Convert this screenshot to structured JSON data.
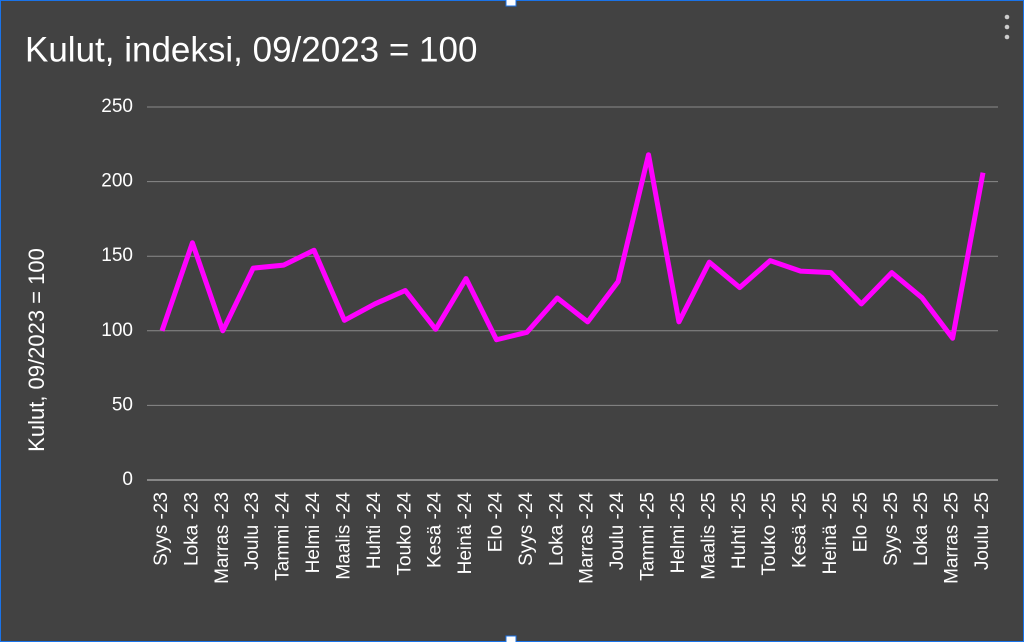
{
  "chart_data": {
    "type": "line",
    "title": "Kulut, indeksi, 09/2023 = 100",
    "y_label": "Kulut, 09/2023 = 100",
    "categories": [
      "Syys -23",
      "Loka -23",
      "Marras -23",
      "Joulu -23",
      "Tammi -24",
      "Helmi -24",
      "Maalis -24",
      "Huhti -24",
      "Touko -24",
      "Kesä -24",
      "Heinä -24",
      "Elo -24",
      "Syys -24",
      "Loka -24",
      "Marras -24",
      "Joulu -24",
      "Tammi -25",
      "Helmi -25",
      "Maalis -25",
      "Huhti -25",
      "Touko -25",
      "Kesä -25",
      "Heinä -25",
      "Elo -25",
      "Syys -25",
      "Loka -25",
      "Marras -25",
      "Joulu -25"
    ],
    "values": [
      100,
      159,
      100,
      142,
      144,
      154,
      107,
      118,
      127,
      101,
      135,
      94,
      99,
      122,
      106,
      133,
      218,
      106,
      146,
      129,
      147,
      140,
      139,
      118,
      139,
      122,
      95,
      206
    ],
    "color": "#ff00ff",
    "ylim": [
      0,
      250
    ],
    "yticks": [
      0,
      50,
      100,
      150,
      200,
      250
    ],
    "grid": true
  }
}
